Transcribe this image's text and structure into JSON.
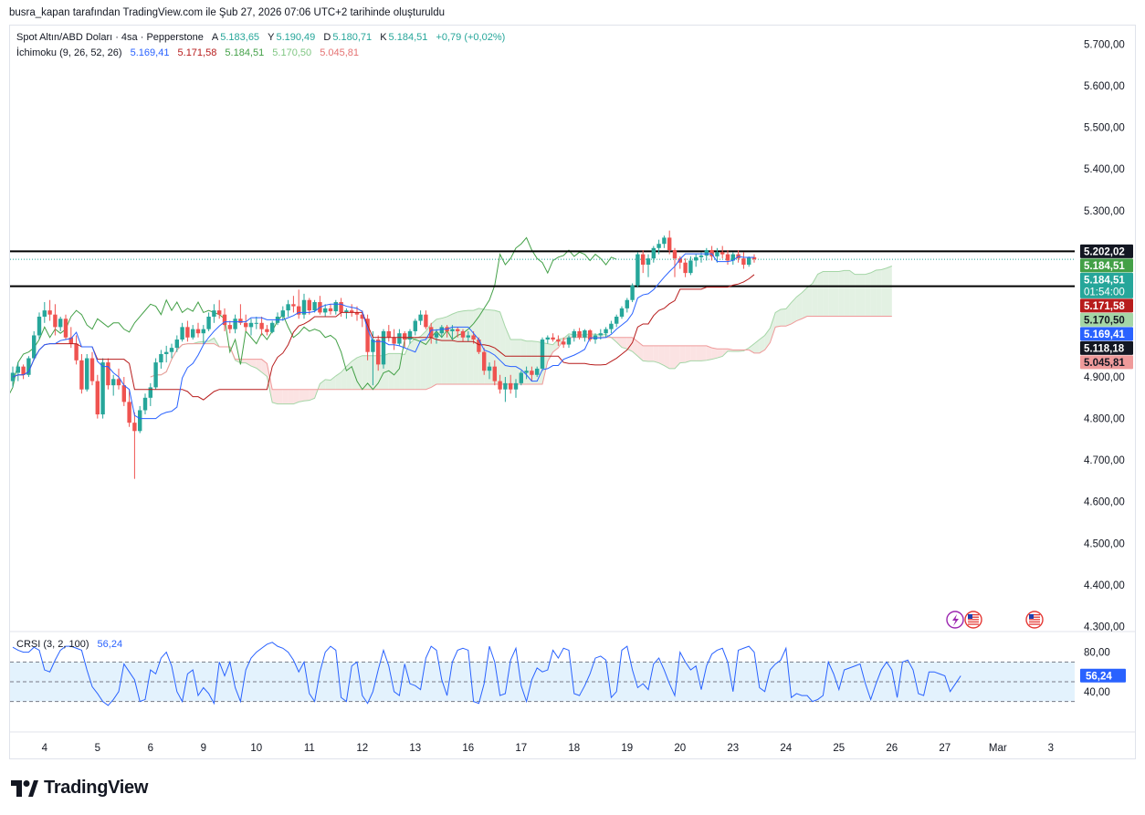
{
  "header_note": "busra_kapan tarafından TradingView.com ile Şub 27, 2026 07:06 UTC+2 tarihinde oluşturuldu",
  "legend": {
    "symbol": "Spot Altın/ABD Doları · 4sa · Pepperstone",
    "o_label": "A",
    "o_value": "5.183,65",
    "h_label": "Y",
    "h_value": "5.190,49",
    "l_label": "D",
    "l_value": "5.180,71",
    "c_label": "K",
    "c_value": "5.184,51",
    "change": "+0,79 (+0,02%)",
    "ichimoku_label": "İchimoku (9, 26, 52, 26)",
    "ichimoku_values": [
      "5.169,41",
      "5.171,58",
      "5.184,51",
      "5.170,50",
      "5.045,81"
    ],
    "crsi_label": "CRSI (3, 2, 100)",
    "crsi_value": "56,24"
  },
  "colors": {
    "up": "#26a69a",
    "down": "#ef5350",
    "conversion": "#2962ff",
    "base": "#b71c1c",
    "lagging": "#43a047",
    "span_a": "#a5d6a7",
    "span_b": "#ef9a9a",
    "kumo_bull": "#e3f1e3",
    "kumo_bear": "#fbe3e3",
    "crsi_line": "#2962ff",
    "crsi_band": "#e3f2fd"
  },
  "chart_data": [
    {
      "type": "candlestick",
      "title": "Spot Altın/ABD Doları · 4sa · Pepperstone",
      "y_ticks": [
        "5.700,00",
        "5.600,00",
        "5.500,00",
        "5.400,00",
        "5.300,00",
        "4.900,00",
        "4.800,00",
        "4.700,00",
        "4.600,00",
        "4.500,00",
        "4.400,00",
        "4.300,00"
      ],
      "y_tick_values": [
        5700,
        5600,
        5500,
        5400,
        5300,
        4900,
        4800,
        4700,
        4600,
        4500,
        4400,
        4300
      ],
      "ylim": [
        4290,
        5745
      ],
      "x_ticks": [
        "4",
        "5",
        "6",
        "9",
        "10",
        "11",
        "12",
        "13",
        "16",
        "17",
        "18",
        "19",
        "20",
        "23",
        "24",
        "25",
        "26",
        "27",
        "Mar",
        "3"
      ],
      "x_tick_bars": [
        6,
        16,
        26,
        36,
        46,
        56,
        66,
        76,
        86,
        96,
        106,
        116,
        126,
        136,
        146,
        156,
        166,
        176,
        186,
        196
      ],
      "horizontal_levels": [
        5202.02,
        5118.18
      ],
      "price_labels": [
        {
          "text": "5.202,02",
          "value": 5202.02,
          "color": "#131722"
        },
        {
          "text": "5.184,51",
          "value": 5184.51,
          "color": "#43a047"
        },
        {
          "text": "5.184,51",
          "value": 5184.51,
          "color": "#26a69a",
          "sub": "01:54:00"
        },
        {
          "text": "5.171,58",
          "value": 5171.58,
          "color": "#b71c1c"
        },
        {
          "text": "5.170,50",
          "value": 5170.5,
          "color": "#a5d6a7",
          "dark_text": true
        },
        {
          "text": "5.169,41",
          "value": 5169.41,
          "color": "#2962ff"
        },
        {
          "text": "5.118,18",
          "value": 5118.18,
          "color": "#131722"
        },
        {
          "text": "5.045,81",
          "value": 5045.81,
          "color": "#ef9a9a",
          "dark_text": true
        }
      ],
      "candles": [
        [
          4890,
          4925,
          4875,
          4910
        ],
        [
          4910,
          4935,
          4890,
          4925
        ],
        [
          4925,
          4930,
          4895,
          4905
        ],
        [
          4905,
          4950,
          4900,
          4945
        ],
        [
          4945,
          5010,
          4940,
          5000
        ],
        [
          5000,
          5055,
          4990,
          5045
        ],
        [
          5045,
          5080,
          5030,
          5060
        ],
        [
          5060,
          5085,
          5035,
          5050
        ],
        [
          5050,
          5075,
          5000,
          5020
        ],
        [
          5020,
          5045,
          5010,
          5040
        ],
        [
          5040,
          5050,
          4990,
          4995
        ],
        [
          4995,
          5020,
          4970,
          4980
        ],
        [
          4980,
          5000,
          4930,
          4940
        ],
        [
          4940,
          4955,
          4860,
          4870
        ],
        [
          4870,
          4955,
          4865,
          4945
        ],
        [
          4945,
          4960,
          4880,
          4890
        ],
        [
          4890,
          4905,
          4800,
          4810
        ],
        [
          4810,
          4945,
          4800,
          4935
        ],
        [
          4935,
          4945,
          4870,
          4880
        ],
        [
          4880,
          4905,
          4855,
          4895
        ],
        [
          4895,
          4920,
          4870,
          4880
        ],
        [
          4880,
          4900,
          4830,
          4840
        ],
        [
          4840,
          4870,
          4780,
          4790
        ],
        [
          4790,
          4815,
          4655,
          4770
        ],
        [
          4770,
          4830,
          4765,
          4820
        ],
        [
          4820,
          4860,
          4810,
          4850
        ],
        [
          4850,
          4885,
          4830,
          4875
        ],
        [
          4875,
          4945,
          4870,
          4935
        ],
        [
          4935,
          4965,
          4920,
          4955
        ],
        [
          4955,
          4975,
          4935,
          4960
        ],
        [
          4960,
          4980,
          4945,
          4970
        ],
        [
          4970,
          5000,
          4960,
          4990
        ],
        [
          4990,
          5030,
          4985,
          5020
        ],
        [
          5020,
          5035,
          4985,
          4995
        ],
        [
          4995,
          5025,
          4990,
          5015
        ],
        [
          5015,
          5030,
          4995,
          5005
        ],
        [
          5005,
          5025,
          4980,
          5015
        ],
        [
          5015,
          5055,
          5010,
          5045
        ],
        [
          5045,
          5075,
          5030,
          5060
        ],
        [
          5060,
          5085,
          5040,
          5050
        ],
        [
          5050,
          5065,
          5010,
          5025
        ],
        [
          5025,
          5035,
          5005,
          5015
        ],
        [
          5015,
          5050,
          5005,
          5040
        ],
        [
          5040,
          5075,
          5025,
          5030
        ],
        [
          5030,
          5050,
          5010,
          5020
        ],
        [
          5020,
          5040,
          5000,
          5030
        ],
        [
          5030,
          5045,
          5015,
          5030
        ],
        [
          5030,
          5045,
          5000,
          5015
        ],
        [
          5015,
          5025,
          5000,
          5008
        ],
        [
          5008,
          5035,
          5005,
          5030
        ],
        [
          5030,
          5055,
          5025,
          5045
        ],
        [
          5045,
          5070,
          5035,
          5060
        ],
        [
          5060,
          5085,
          5045,
          5075
        ],
        [
          5075,
          5095,
          5055,
          5070
        ],
        [
          5070,
          5110,
          5040,
          5050
        ],
        [
          5050,
          5100,
          5040,
          5085
        ],
        [
          5085,
          5090,
          5050,
          5060
        ],
        [
          5060,
          5085,
          5055,
          5080
        ],
        [
          5080,
          5095,
          5050,
          5055
        ],
        [
          5055,
          5075,
          5045,
          5065
        ],
        [
          5065,
          5075,
          5050,
          5058
        ],
        [
          5058,
          5085,
          5050,
          5080
        ],
        [
          5080,
          5090,
          5045,
          5055
        ],
        [
          5055,
          5065,
          5040,
          5060
        ],
        [
          5060,
          5075,
          5045,
          5055
        ],
        [
          5055,
          5070,
          5035,
          5050
        ],
        [
          5050,
          5060,
          5020,
          5040
        ],
        [
          5040,
          5050,
          4940,
          4960
        ],
        [
          4960,
          5010,
          4880,
          4990
        ],
        [
          4990,
          5000,
          4915,
          4930
        ],
        [
          4930,
          5015,
          4920,
          5010
        ],
        [
          5010,
          5025,
          4985,
          4995
        ],
        [
          4995,
          5015,
          4965,
          4980
        ],
        [
          4980,
          5015,
          4975,
          5005
        ],
        [
          5005,
          5010,
          4970,
          4990
        ],
        [
          4990,
          5015,
          4980,
          5010
        ],
        [
          5010,
          5040,
          5000,
          5035
        ],
        [
          5035,
          5060,
          5025,
          5050
        ],
        [
          5050,
          5060,
          5015,
          5020
        ],
        [
          5020,
          5030,
          4980,
          4995
        ],
        [
          4995,
          5015,
          4980,
          5005
        ],
        [
          5005,
          5025,
          4995,
          5020
        ],
        [
          5020,
          5025,
          4995,
          5010
        ],
        [
          5010,
          5025,
          4990,
          5015
        ],
        [
          5015,
          5020,
          4995,
          5010
        ],
        [
          5010,
          5015,
          4985,
          4995
        ],
        [
          4995,
          5010,
          4985,
          5000
        ],
        [
          5000,
          5010,
          4980,
          4990
        ],
        [
          4990,
          4995,
          4955,
          4960
        ],
        [
          4960,
          4970,
          4905,
          4915
        ],
        [
          4915,
          4935,
          4895,
          4925
        ],
        [
          4925,
          4940,
          4880,
          4890
        ],
        [
          4890,
          4905,
          4860,
          4870
        ],
        [
          4870,
          4900,
          4840,
          4885
        ],
        [
          4885,
          4905,
          4860,
          4870
        ],
        [
          4870,
          4895,
          4850,
          4885
        ],
        [
          4885,
          4915,
          4880,
          4910
        ],
        [
          4910,
          4925,
          4895,
          4915
        ],
        [
          4915,
          4925,
          4890,
          4905
        ],
        [
          4905,
          4925,
          4900,
          4920
        ],
        [
          4920,
          4995,
          4915,
          4990
        ],
        [
          4990,
          5000,
          4980,
          4995
        ],
        [
          4995,
          5005,
          4985,
          4990
        ],
        [
          4990,
          5000,
          4975,
          4985
        ],
        [
          4985,
          4995,
          4970,
          4978
        ],
        [
          4978,
          5000,
          4970,
          4995
        ],
        [
          4995,
          5015,
          4985,
          5010
        ],
        [
          5010,
          5018,
          4990,
          4995
        ],
        [
          4995,
          5015,
          4985,
          5012
        ],
        [
          5012,
          5015,
          4985,
          4990
        ],
        [
          4990,
          5005,
          4980,
          5000
        ],
        [
          5000,
          5015,
          4990,
          5005
        ],
        [
          5005,
          5020,
          4995,
          5015
        ],
        [
          5015,
          5035,
          5005,
          5028
        ],
        [
          5028,
          5050,
          5020,
          5045
        ],
        [
          5045,
          5070,
          5040,
          5065
        ],
        [
          5065,
          5090,
          5055,
          5085
        ],
        [
          5085,
          5125,
          5080,
          5120
        ],
        [
          5120,
          5200,
          5115,
          5195
        ],
        [
          5195,
          5205,
          5150,
          5170
        ],
        [
          5170,
          5195,
          5140,
          5185
        ],
        [
          5185,
          5215,
          5175,
          5210
        ],
        [
          5210,
          5230,
          5195,
          5220
        ],
        [
          5220,
          5240,
          5210,
          5235
        ],
        [
          5235,
          5252,
          5195,
          5205
        ],
        [
          5205,
          5210,
          5140,
          5185
        ],
        [
          5185,
          5190,
          5160,
          5175
        ],
        [
          5175,
          5185,
          5140,
          5150
        ],
        [
          5150,
          5190,
          5145,
          5180
        ],
        [
          5180,
          5195,
          5165,
          5188
        ],
        [
          5188,
          5200,
          5175,
          5192
        ],
        [
          5192,
          5210,
          5180,
          5205
        ],
        [
          5205,
          5215,
          5180,
          5190
        ],
        [
          5190,
          5210,
          5175,
          5200
        ],
        [
          5200,
          5215,
          5185,
          5195
        ],
        [
          5195,
          5205,
          5170,
          5180
        ],
        [
          5180,
          5200,
          5170,
          5195
        ],
        [
          5195,
          5205,
          5175,
          5185
        ],
        [
          5185,
          5200,
          5160,
          5170
        ],
        [
          5170,
          5190,
          5165,
          5188
        ],
        [
          5188,
          5195,
          5175,
          5183
        ]
      ]
    },
    {
      "type": "line",
      "title": "CRSI (3, 2, 100)",
      "y_ticks": [
        "80,00",
        "40,00"
      ],
      "y_tick_values": [
        80,
        40
      ],
      "band": [
        70,
        30
      ],
      "ylim": [
        0,
        100
      ],
      "current_value": 56.24,
      "values": [
        85,
        82,
        80,
        80,
        85,
        82,
        62,
        60,
        72,
        82,
        86,
        86,
        84,
        82,
        62,
        45,
        38,
        30,
        26,
        32,
        40,
        68,
        60,
        52,
        30,
        32,
        62,
        58,
        74,
        80,
        66,
        40,
        30,
        58,
        62,
        36,
        44,
        38,
        28,
        70,
        56,
        70,
        44,
        30,
        62,
        74,
        80,
        84,
        88,
        90,
        86,
        84,
        80,
        72,
        60,
        70,
        38,
        30,
        60,
        80,
        86,
        82,
        34,
        30,
        66,
        70,
        36,
        28,
        40,
        62,
        82,
        66,
        40,
        36,
        68,
        48,
        46,
        42,
        74,
        86,
        82,
        52,
        36,
        70,
        82,
        84,
        82,
        30,
        28,
        48,
        86,
        70,
        36,
        38,
        72,
        84,
        46,
        30,
        52,
        64,
        60,
        62,
        82,
        74,
        84,
        82,
        38,
        36,
        46,
        58,
        74,
        76,
        72,
        34,
        40,
        82,
        86,
        62,
        44,
        48,
        42,
        68,
        74,
        62,
        48,
        36,
        80,
        70,
        62,
        66,
        42,
        66,
        78,
        82,
        84,
        70,
        40,
        82,
        84,
        86,
        80,
        44,
        40,
        62,
        68,
        72,
        84,
        34,
        38,
        36,
        36,
        30,
        32,
        36,
        70,
        58,
        42,
        62,
        64,
        66,
        68,
        48,
        32,
        48,
        62,
        70,
        62,
        34,
        70,
        72,
        62,
        38,
        36,
        60,
        60,
        58,
        56,
        40,
        48,
        56
      ]
    }
  ]
}
